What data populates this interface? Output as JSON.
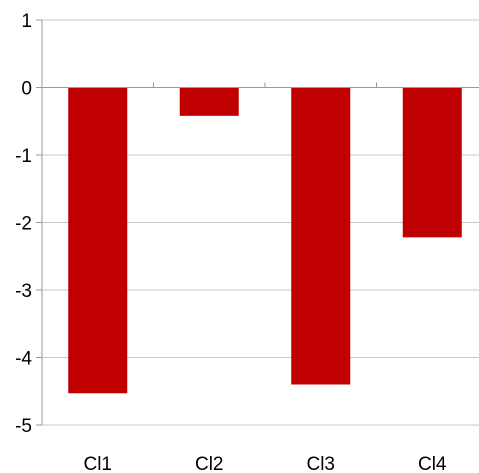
{
  "chart_data": {
    "type": "bar",
    "categories": [
      "Cl1",
      "Cl2",
      "Cl3",
      "Cl4"
    ],
    "values": [
      -4.53,
      -0.42,
      -4.4,
      -2.22
    ],
    "ylim": [
      -5,
      1
    ],
    "yticks": [
      "1",
      "0",
      "-1",
      "-2",
      "-3",
      "-4",
      "-5"
    ],
    "grid": true,
    "legend": "none",
    "colors": {
      "bar": "#c00000",
      "grid": "#c8c8c8",
      "axis": "#9a9a9a"
    }
  }
}
